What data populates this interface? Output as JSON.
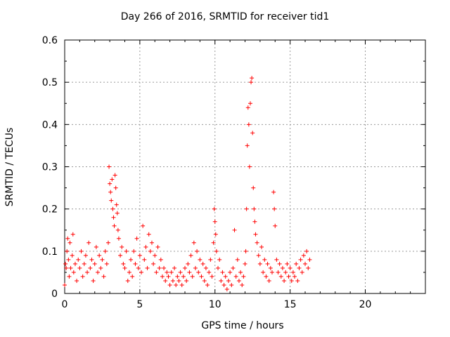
{
  "chart_data": {
    "type": "scatter",
    "title": "Day 266 of 2016, SRMTID for receiver tid1",
    "xlabel": "GPS time / hours",
    "ylabel": "SRMTID / TECUs",
    "xlim": [
      0,
      24
    ],
    "ylim": [
      0,
      0.6
    ],
    "x_ticks": [
      "0",
      "5",
      "10",
      "15",
      "20"
    ],
    "y_ticks": [
      "0",
      "0.1",
      "0.2",
      "0.3",
      "0.4",
      "0.5",
      "0.6"
    ],
    "grid": true,
    "marker": "+",
    "series": [
      {
        "color": "#ff0000",
        "points": [
          [
            0.0,
            0.02
          ],
          [
            0.05,
            0.07
          ],
          [
            0.1,
            0.06
          ],
          [
            0.15,
            0.1
          ],
          [
            0.2,
            0.13
          ],
          [
            0.25,
            0.08
          ],
          [
            0.3,
            0.04
          ],
          [
            0.35,
            0.12
          ],
          [
            0.4,
            0.06
          ],
          [
            0.5,
            0.09
          ],
          [
            0.55,
            0.14
          ],
          [
            0.6,
            0.05
          ],
          [
            0.7,
            0.07
          ],
          [
            0.8,
            0.03
          ],
          [
            0.9,
            0.08
          ],
          [
            1.0,
            0.06
          ],
          [
            1.1,
            0.1
          ],
          [
            1.2,
            0.04
          ],
          [
            1.3,
            0.07
          ],
          [
            1.4,
            0.09
          ],
          [
            1.5,
            0.05
          ],
          [
            1.6,
            0.12
          ],
          [
            1.7,
            0.06
          ],
          [
            1.8,
            0.08
          ],
          [
            1.9,
            0.03
          ],
          [
            2.0,
            0.07
          ],
          [
            2.1,
            0.11
          ],
          [
            2.2,
            0.05
          ],
          [
            2.3,
            0.09
          ],
          [
            2.4,
            0.06
          ],
          [
            2.5,
            0.08
          ],
          [
            2.6,
            0.04
          ],
          [
            2.7,
            0.1
          ],
          [
            2.8,
            0.07
          ],
          [
            2.9,
            0.12
          ],
          [
            2.95,
            0.3
          ],
          [
            3.0,
            0.26
          ],
          [
            3.05,
            0.24
          ],
          [
            3.1,
            0.22
          ],
          [
            3.15,
            0.27
          ],
          [
            3.2,
            0.2
          ],
          [
            3.25,
            0.18
          ],
          [
            3.3,
            0.16
          ],
          [
            3.35,
            0.28
          ],
          [
            3.4,
            0.25
          ],
          [
            3.45,
            0.21
          ],
          [
            3.5,
            0.19
          ],
          [
            3.55,
            0.15
          ],
          [
            3.6,
            0.13
          ],
          [
            3.7,
            0.09
          ],
          [
            3.8,
            0.11
          ],
          [
            3.9,
            0.07
          ],
          [
            4.0,
            0.06
          ],
          [
            4.1,
            0.1
          ],
          [
            4.2,
            0.03
          ],
          [
            4.3,
            0.05
          ],
          [
            4.4,
            0.08
          ],
          [
            4.5,
            0.04
          ],
          [
            4.6,
            0.1
          ],
          [
            4.7,
            0.07
          ],
          [
            4.8,
            0.13
          ],
          [
            4.9,
            0.06
          ],
          [
            5.0,
            0.09
          ],
          [
            5.1,
            0.05
          ],
          [
            5.2,
            0.16
          ],
          [
            5.3,
            0.08
          ],
          [
            5.4,
            0.11
          ],
          [
            5.5,
            0.06
          ],
          [
            5.6,
            0.14
          ],
          [
            5.7,
            0.1
          ],
          [
            5.8,
            0.12
          ],
          [
            5.9,
            0.07
          ],
          [
            6.0,
            0.09
          ],
          [
            6.1,
            0.05
          ],
          [
            6.2,
            0.11
          ],
          [
            6.3,
            0.06
          ],
          [
            6.4,
            0.08
          ],
          [
            6.5,
            0.04
          ],
          [
            6.6,
            0.06
          ],
          [
            6.7,
            0.03
          ],
          [
            6.8,
            0.05
          ],
          [
            6.9,
            0.04
          ],
          [
            7.0,
            0.02
          ],
          [
            7.1,
            0.05
          ],
          [
            7.2,
            0.03
          ],
          [
            7.3,
            0.06
          ],
          [
            7.4,
            0.02
          ],
          [
            7.5,
            0.04
          ],
          [
            7.6,
            0.03
          ],
          [
            7.7,
            0.05
          ],
          [
            7.8,
            0.02
          ],
          [
            7.9,
            0.04
          ],
          [
            8.0,
            0.06
          ],
          [
            8.1,
            0.03
          ],
          [
            8.2,
            0.07
          ],
          [
            8.3,
            0.05
          ],
          [
            8.4,
            0.09
          ],
          [
            8.5,
            0.04
          ],
          [
            8.6,
            0.12
          ],
          [
            8.7,
            0.06
          ],
          [
            8.8,
            0.1
          ],
          [
            8.9,
            0.05
          ],
          [
            9.0,
            0.08
          ],
          [
            9.1,
            0.04
          ],
          [
            9.2,
            0.07
          ],
          [
            9.3,
            0.03
          ],
          [
            9.4,
            0.06
          ],
          [
            9.5,
            0.02
          ],
          [
            9.6,
            0.05
          ],
          [
            9.7,
            0.08
          ],
          [
            9.8,
            0.04
          ],
          [
            9.9,
            0.12
          ],
          [
            9.95,
            0.2
          ],
          [
            10.0,
            0.17
          ],
          [
            10.05,
            0.14
          ],
          [
            10.1,
            0.1
          ],
          [
            10.2,
            0.06
          ],
          [
            10.3,
            0.08
          ],
          [
            10.4,
            0.03
          ],
          [
            10.5,
            0.05
          ],
          [
            10.6,
            0.02
          ],
          [
            10.7,
            0.04
          ],
          [
            10.8,
            0.01
          ],
          [
            10.9,
            0.03
          ],
          [
            11.0,
            0.05
          ],
          [
            11.1,
            0.02
          ],
          [
            11.2,
            0.06
          ],
          [
            11.3,
            0.15
          ],
          [
            11.4,
            0.04
          ],
          [
            11.5,
            0.08
          ],
          [
            11.6,
            0.03
          ],
          [
            11.7,
            0.05
          ],
          [
            11.8,
            0.02
          ],
          [
            11.9,
            0.04
          ],
          [
            12.0,
            0.07
          ],
          [
            12.05,
            0.1
          ],
          [
            12.1,
            0.2
          ],
          [
            12.15,
            0.35
          ],
          [
            12.2,
            0.44
          ],
          [
            12.25,
            0.4
          ],
          [
            12.3,
            0.3
          ],
          [
            12.35,
            0.45
          ],
          [
            12.4,
            0.5
          ],
          [
            12.45,
            0.51
          ],
          [
            12.5,
            0.38
          ],
          [
            12.55,
            0.25
          ],
          [
            12.6,
            0.2
          ],
          [
            12.65,
            0.17
          ],
          [
            12.7,
            0.14
          ],
          [
            12.8,
            0.12
          ],
          [
            12.9,
            0.09
          ],
          [
            13.0,
            0.07
          ],
          [
            13.1,
            0.11
          ],
          [
            13.2,
            0.05
          ],
          [
            13.3,
            0.08
          ],
          [
            13.4,
            0.04
          ],
          [
            13.5,
            0.07
          ],
          [
            13.6,
            0.03
          ],
          [
            13.7,
            0.06
          ],
          [
            13.8,
            0.05
          ],
          [
            13.9,
            0.24
          ],
          [
            13.95,
            0.2
          ],
          [
            14.0,
            0.16
          ],
          [
            14.1,
            0.08
          ],
          [
            14.2,
            0.05
          ],
          [
            14.3,
            0.07
          ],
          [
            14.4,
            0.04
          ],
          [
            14.5,
            0.06
          ],
          [
            14.6,
            0.03
          ],
          [
            14.7,
            0.05
          ],
          [
            14.8,
            0.07
          ],
          [
            14.9,
            0.04
          ],
          [
            15.0,
            0.06
          ],
          [
            15.1,
            0.03
          ],
          [
            15.2,
            0.05
          ],
          [
            15.3,
            0.04
          ],
          [
            15.4,
            0.07
          ],
          [
            15.5,
            0.03
          ],
          [
            15.6,
            0.06
          ],
          [
            15.7,
            0.08
          ],
          [
            15.8,
            0.05
          ],
          [
            15.9,
            0.09
          ],
          [
            16.0,
            0.07
          ],
          [
            16.1,
            0.1
          ],
          [
            16.2,
            0.06
          ],
          [
            16.3,
            0.08
          ]
        ]
      }
    ]
  }
}
